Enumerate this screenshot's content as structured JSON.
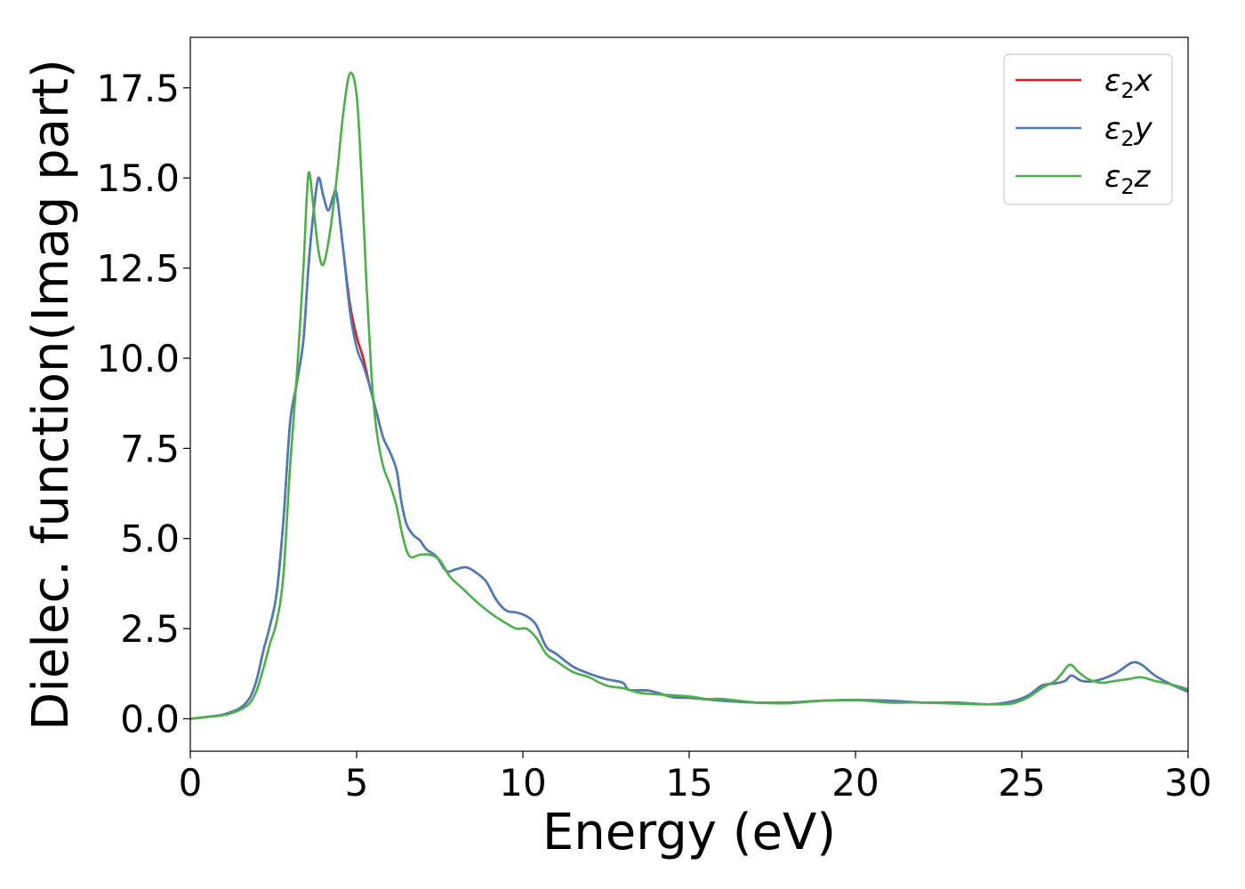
{
  "chart_data": {
    "type": "line",
    "xlabel": "Energy (eV)",
    "ylabel": "Dielec. function(Imag part)",
    "xlim": [
      0,
      30
    ],
    "ylim": [
      -0.9,
      18.9
    ],
    "xticks": [
      0,
      5,
      10,
      15,
      20,
      25,
      30
    ],
    "xtick_labels": [
      "0",
      "5",
      "10",
      "15",
      "20",
      "25",
      "30"
    ],
    "yticks": [
      0.0,
      2.5,
      5.0,
      7.5,
      10.0,
      12.5,
      15.0,
      17.5
    ],
    "ytick_labels": [
      "0.0",
      "2.5",
      "5.0",
      "7.5",
      "10.0",
      "12.5",
      "15.0",
      "17.5"
    ],
    "grid": false,
    "legend_position": "top-right",
    "series": [
      {
        "name": "ε₂x",
        "legend_base": "ε",
        "legend_sub": "2",
        "legend_axis": "x",
        "color": "#e41a1c",
        "points": [
          [
            0,
            0
          ],
          [
            0.5,
            0.05
          ],
          [
            1.0,
            0.12
          ],
          [
            1.5,
            0.3
          ],
          [
            1.8,
            0.6
          ],
          [
            2.0,
            1.1
          ],
          [
            2.2,
            1.9
          ],
          [
            2.4,
            2.6
          ],
          [
            2.6,
            3.5
          ],
          [
            2.8,
            5.5
          ],
          [
            3.0,
            8.2
          ],
          [
            3.2,
            9.3
          ],
          [
            3.4,
            10.5
          ],
          [
            3.55,
            12.5
          ],
          [
            3.7,
            14.0
          ],
          [
            3.85,
            15.0
          ],
          [
            4.0,
            14.5
          ],
          [
            4.15,
            14.1
          ],
          [
            4.3,
            14.5
          ],
          [
            4.4,
            14.55
          ],
          [
            4.6,
            13.0
          ],
          [
            4.8,
            11.5
          ],
          [
            5.0,
            10.6
          ],
          [
            5.2,
            10.0
          ],
          [
            5.4,
            9.2
          ],
          [
            5.6,
            8.5
          ],
          [
            5.8,
            7.8
          ],
          [
            6.0,
            7.4
          ],
          [
            6.2,
            6.9
          ],
          [
            6.35,
            6.0
          ],
          [
            6.5,
            5.4
          ],
          [
            6.7,
            5.1
          ],
          [
            6.9,
            4.95
          ],
          [
            7.1,
            4.7
          ],
          [
            7.4,
            4.5
          ],
          [
            7.7,
            4.1
          ],
          [
            8.0,
            4.15
          ],
          [
            8.3,
            4.2
          ],
          [
            8.6,
            4.05
          ],
          [
            8.9,
            3.8
          ],
          [
            9.2,
            3.3
          ],
          [
            9.5,
            3.0
          ],
          [
            9.8,
            2.95
          ],
          [
            10.1,
            2.85
          ],
          [
            10.4,
            2.6
          ],
          [
            10.7,
            2.0
          ],
          [
            11.0,
            1.8
          ],
          [
            11.5,
            1.45
          ],
          [
            12.0,
            1.25
          ],
          [
            12.5,
            1.1
          ],
          [
            13.0,
            1.0
          ],
          [
            13.2,
            0.8
          ],
          [
            13.8,
            0.78
          ],
          [
            14.5,
            0.6
          ],
          [
            15.0,
            0.58
          ],
          [
            16.0,
            0.5
          ],
          [
            17.0,
            0.45
          ],
          [
            18.0,
            0.45
          ],
          [
            19.0,
            0.5
          ],
          [
            20.0,
            0.52
          ],
          [
            21.0,
            0.5
          ],
          [
            22.0,
            0.45
          ],
          [
            23.0,
            0.45
          ],
          [
            24.0,
            0.4
          ],
          [
            24.7,
            0.48
          ],
          [
            25.2,
            0.65
          ],
          [
            25.6,
            0.92
          ],
          [
            26.0,
            0.98
          ],
          [
            26.3,
            1.05
          ],
          [
            26.5,
            1.2
          ],
          [
            26.8,
            1.05
          ],
          [
            27.2,
            1.05
          ],
          [
            27.8,
            1.25
          ],
          [
            28.3,
            1.55
          ],
          [
            28.6,
            1.5
          ],
          [
            29.0,
            1.2
          ],
          [
            29.5,
            0.95
          ],
          [
            30.0,
            0.75
          ]
        ]
      },
      {
        "name": "ε₂y",
        "legend_base": "ε",
        "legend_sub": "2",
        "legend_axis": "y",
        "color": "#4a7db5",
        "points": [
          [
            0,
            0
          ],
          [
            0.5,
            0.05
          ],
          [
            1.0,
            0.12
          ],
          [
            1.5,
            0.3
          ],
          [
            1.8,
            0.6
          ],
          [
            2.0,
            1.1
          ],
          [
            2.2,
            1.9
          ],
          [
            2.4,
            2.6
          ],
          [
            2.6,
            3.5
          ],
          [
            2.8,
            5.5
          ],
          [
            3.0,
            8.2
          ],
          [
            3.2,
            9.3
          ],
          [
            3.4,
            10.5
          ],
          [
            3.55,
            12.5
          ],
          [
            3.7,
            14.0
          ],
          [
            3.85,
            15.0
          ],
          [
            4.0,
            14.5
          ],
          [
            4.15,
            14.1
          ],
          [
            4.3,
            14.5
          ],
          [
            4.4,
            14.55
          ],
          [
            4.6,
            13.0
          ],
          [
            4.8,
            11.3
          ],
          [
            5.0,
            10.3
          ],
          [
            5.2,
            9.8
          ],
          [
            5.4,
            9.2
          ],
          [
            5.6,
            8.5
          ],
          [
            5.8,
            7.8
          ],
          [
            6.0,
            7.4
          ],
          [
            6.2,
            6.9
          ],
          [
            6.35,
            6.0
          ],
          [
            6.5,
            5.4
          ],
          [
            6.7,
            5.1
          ],
          [
            6.9,
            4.95
          ],
          [
            7.1,
            4.7
          ],
          [
            7.4,
            4.5
          ],
          [
            7.7,
            4.1
          ],
          [
            8.0,
            4.15
          ],
          [
            8.3,
            4.2
          ],
          [
            8.6,
            4.05
          ],
          [
            8.9,
            3.8
          ],
          [
            9.2,
            3.3
          ],
          [
            9.5,
            3.0
          ],
          [
            9.8,
            2.95
          ],
          [
            10.1,
            2.85
          ],
          [
            10.4,
            2.6
          ],
          [
            10.7,
            2.0
          ],
          [
            11.0,
            1.8
          ],
          [
            11.5,
            1.45
          ],
          [
            12.0,
            1.25
          ],
          [
            12.5,
            1.1
          ],
          [
            13.0,
            1.0
          ],
          [
            13.2,
            0.8
          ],
          [
            13.8,
            0.78
          ],
          [
            14.5,
            0.6
          ],
          [
            15.0,
            0.58
          ],
          [
            16.0,
            0.5
          ],
          [
            17.0,
            0.45
          ],
          [
            18.0,
            0.45
          ],
          [
            19.0,
            0.5
          ],
          [
            20.0,
            0.52
          ],
          [
            21.0,
            0.5
          ],
          [
            22.0,
            0.45
          ],
          [
            23.0,
            0.45
          ],
          [
            24.0,
            0.4
          ],
          [
            24.7,
            0.48
          ],
          [
            25.2,
            0.65
          ],
          [
            25.6,
            0.92
          ],
          [
            26.0,
            0.98
          ],
          [
            26.3,
            1.05
          ],
          [
            26.5,
            1.2
          ],
          [
            26.8,
            1.05
          ],
          [
            27.2,
            1.05
          ],
          [
            27.8,
            1.25
          ],
          [
            28.3,
            1.55
          ],
          [
            28.6,
            1.5
          ],
          [
            29.0,
            1.2
          ],
          [
            29.5,
            0.95
          ],
          [
            30.0,
            0.75
          ]
        ]
      },
      {
        "name": "ε₂z",
        "legend_base": "ε",
        "legend_sub": "2",
        "legend_axis": "z",
        "color": "#4daf4a",
        "points": [
          [
            0,
            0
          ],
          [
            0.5,
            0.05
          ],
          [
            1.0,
            0.1
          ],
          [
            1.5,
            0.25
          ],
          [
            1.8,
            0.45
          ],
          [
            2.0,
            0.8
          ],
          [
            2.2,
            1.4
          ],
          [
            2.4,
            2.1
          ],
          [
            2.6,
            2.7
          ],
          [
            2.8,
            4.0
          ],
          [
            3.0,
            7.0
          ],
          [
            3.2,
            9.5
          ],
          [
            3.4,
            12.5
          ],
          [
            3.55,
            15.1
          ],
          [
            3.7,
            14.2
          ],
          [
            3.85,
            13.0
          ],
          [
            4.0,
            12.6
          ],
          [
            4.2,
            13.5
          ],
          [
            4.4,
            15.0
          ],
          [
            4.6,
            16.8
          ],
          [
            4.8,
            17.9
          ],
          [
            5.0,
            17.3
          ],
          [
            5.15,
            15.0
          ],
          [
            5.3,
            12.0
          ],
          [
            5.45,
            9.5
          ],
          [
            5.6,
            8.0
          ],
          [
            5.8,
            7.0
          ],
          [
            6.0,
            6.5
          ],
          [
            6.2,
            5.9
          ],
          [
            6.4,
            5.0
          ],
          [
            6.6,
            4.5
          ],
          [
            6.9,
            4.55
          ],
          [
            7.2,
            4.55
          ],
          [
            7.5,
            4.4
          ],
          [
            7.8,
            3.95
          ],
          [
            8.2,
            3.6
          ],
          [
            8.6,
            3.25
          ],
          [
            9.0,
            2.95
          ],
          [
            9.4,
            2.7
          ],
          [
            9.8,
            2.5
          ],
          [
            10.1,
            2.5
          ],
          [
            10.4,
            2.25
          ],
          [
            10.7,
            1.8
          ],
          [
            11.0,
            1.6
          ],
          [
            11.5,
            1.3
          ],
          [
            12.0,
            1.15
          ],
          [
            12.3,
            1.0
          ],
          [
            12.6,
            0.9
          ],
          [
            13.0,
            0.85
          ],
          [
            13.5,
            0.72
          ],
          [
            14.0,
            0.68
          ],
          [
            15.0,
            0.62
          ],
          [
            15.5,
            0.55
          ],
          [
            16.0,
            0.55
          ],
          [
            17.0,
            0.45
          ],
          [
            18.0,
            0.43
          ],
          [
            19.0,
            0.5
          ],
          [
            20.0,
            0.52
          ],
          [
            21.0,
            0.45
          ],
          [
            22.0,
            0.45
          ],
          [
            23.0,
            0.42
          ],
          [
            24.0,
            0.4
          ],
          [
            24.7,
            0.42
          ],
          [
            25.2,
            0.6
          ],
          [
            25.6,
            0.85
          ],
          [
            26.0,
            1.05
          ],
          [
            26.2,
            1.25
          ],
          [
            26.45,
            1.5
          ],
          [
            26.7,
            1.3
          ],
          [
            27.0,
            1.1
          ],
          [
            27.4,
            1.0
          ],
          [
            27.8,
            1.05
          ],
          [
            28.2,
            1.1
          ],
          [
            28.6,
            1.15
          ],
          [
            29.0,
            1.05
          ],
          [
            29.5,
            0.95
          ],
          [
            30.0,
            0.82
          ]
        ]
      }
    ]
  }
}
